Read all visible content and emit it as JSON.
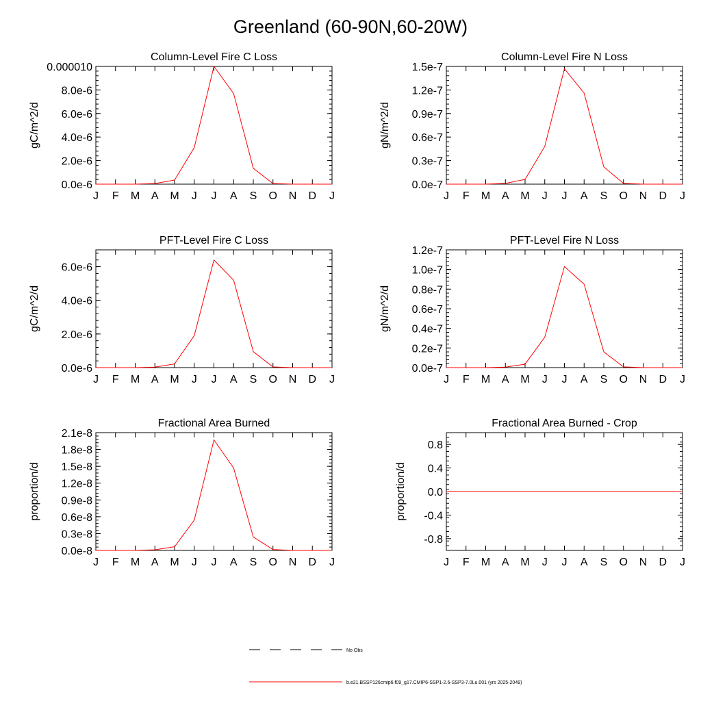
{
  "page_title": "Greenland (60-90N,60-20W)",
  "colors": {
    "series": "#ff0000",
    "axis": "#000000",
    "obs": "#000000"
  },
  "legend": {
    "obs_label": "No Obs",
    "model_label": "b.e21.BSSP126cmip6.f09_g17.CMIP6-SSP1-2.6-SSP3-7.0Lu.001 (yrs 2025-2049)"
  },
  "chart_data": [
    {
      "type": "line",
      "title": "Column-Level Fire C Loss",
      "ylabel": "gC/m^2/d",
      "categories": [
        "J",
        "F",
        "M",
        "A",
        "M",
        "J",
        "J",
        "A",
        "S",
        "O",
        "N",
        "D",
        "J"
      ],
      "ylim": [
        0,
        1e-05
      ],
      "yticks": [
        0,
        2e-06,
        4e-06,
        6e-06,
        8e-06,
        1e-05
      ],
      "ytick_labels": [
        "0.0e-6",
        "2.0e-6",
        "4.0e-6",
        "6.0e-6",
        "8.0e-6",
        "0.000010"
      ],
      "series": [
        {
          "values": [
            0,
            0,
            0,
            5e-08,
            3.5e-07,
            3.1e-06,
            1e-05,
            7.7e-06,
            1.35e-06,
            5e-08,
            0,
            0,
            0
          ]
        }
      ]
    },
    {
      "type": "line",
      "title": "Column-Level Fire N Loss",
      "ylabel": "gN/m^2/d",
      "categories": [
        "J",
        "F",
        "M",
        "A",
        "M",
        "J",
        "J",
        "A",
        "S",
        "O",
        "N",
        "D",
        "J"
      ],
      "ylim": [
        0,
        1.5e-07
      ],
      "yticks": [
        0,
        3e-08,
        6e-08,
        9e-08,
        1.2e-07,
        1.5e-07
      ],
      "ytick_labels": [
        "0.0e-7",
        "0.3e-7",
        "0.6e-7",
        "0.9e-7",
        "1.2e-7",
        "1.5e-7"
      ],
      "series": [
        {
          "values": [
            0,
            0,
            0,
            1e-09,
            6e-09,
            4.8e-08,
            1.47e-07,
            1.16e-07,
            2.2e-08,
            1e-09,
            0,
            0,
            0
          ]
        }
      ]
    },
    {
      "type": "line",
      "title": "PFT-Level Fire C Loss",
      "ylabel": "gC/m^2/d",
      "categories": [
        "J",
        "F",
        "M",
        "A",
        "M",
        "J",
        "J",
        "A",
        "S",
        "O",
        "N",
        "D",
        "J"
      ],
      "ylim": [
        0,
        7e-06
      ],
      "yticks": [
        0,
        2e-06,
        4e-06,
        6e-06
      ],
      "ytick_labels": [
        "0.0e-6",
        "2.0e-6",
        "4.0e-6",
        "6.0e-6"
      ],
      "series": [
        {
          "values": [
            0,
            0,
            0,
            3e-08,
            2.2e-07,
            1.9e-06,
            6.4e-06,
            5.2e-06,
            9.5e-07,
            4e-08,
            0,
            0,
            0
          ]
        }
      ]
    },
    {
      "type": "line",
      "title": "PFT-Level Fire N Loss",
      "ylabel": "gN/m^2/d",
      "categories": [
        "J",
        "F",
        "M",
        "A",
        "M",
        "J",
        "J",
        "A",
        "S",
        "O",
        "N",
        "D",
        "J"
      ],
      "ylim": [
        0,
        1.2e-07
      ],
      "yticks": [
        0,
        2e-08,
        4e-08,
        6e-08,
        8e-08,
        1e-07,
        1.2e-07
      ],
      "ytick_labels": [
        "0.0e-7",
        "0.2e-7",
        "0.4e-7",
        "0.6e-7",
        "0.8e-7",
        "1.0e-7",
        "1.2e-7"
      ],
      "series": [
        {
          "values": [
            0,
            0,
            0,
            5e-10,
            3.5e-09,
            3.1e-08,
            1.03e-07,
            8.5e-08,
            1.6e-08,
            8e-10,
            0,
            0,
            0
          ]
        }
      ]
    },
    {
      "type": "line",
      "title": "Fractional Area Burned",
      "ylabel": "proportion/d",
      "categories": [
        "J",
        "F",
        "M",
        "A",
        "M",
        "J",
        "J",
        "A",
        "S",
        "O",
        "N",
        "D",
        "J"
      ],
      "ylim": [
        0,
        2.1e-08
      ],
      "yticks": [
        0,
        3e-09,
        6e-09,
        9e-09,
        1.2e-08,
        1.5e-08,
        1.8e-08,
        2.1e-08
      ],
      "ytick_labels": [
        "0.0e-8",
        "0.3e-8",
        "0.6e-8",
        "0.9e-8",
        "1.2e-8",
        "1.5e-8",
        "1.8e-8",
        "2.1e-8"
      ],
      "series": [
        {
          "values": [
            0,
            0,
            0,
            1e-10,
            6.5e-10,
            5.4e-09,
            1.97e-08,
            1.47e-08,
            2.4e-09,
            1.5e-10,
            0,
            0,
            0
          ]
        }
      ]
    },
    {
      "type": "line",
      "title": "Fractional Area Burned - Crop",
      "ylabel": "proportion/d",
      "categories": [
        "J",
        "F",
        "M",
        "A",
        "M",
        "J",
        "J",
        "A",
        "S",
        "O",
        "N",
        "D",
        "J"
      ],
      "ylim": [
        -1,
        1
      ],
      "yticks": [
        -0.8,
        -0.4,
        0,
        0.4,
        0.8
      ],
      "ytick_labels": [
        "-0.8",
        "-0.4",
        "0.0",
        "0.4",
        "0.8"
      ],
      "series": [
        {
          "values": [
            0,
            0,
            0,
            0,
            0,
            0,
            0,
            0,
            0,
            0,
            0,
            0,
            0
          ]
        }
      ]
    }
  ]
}
